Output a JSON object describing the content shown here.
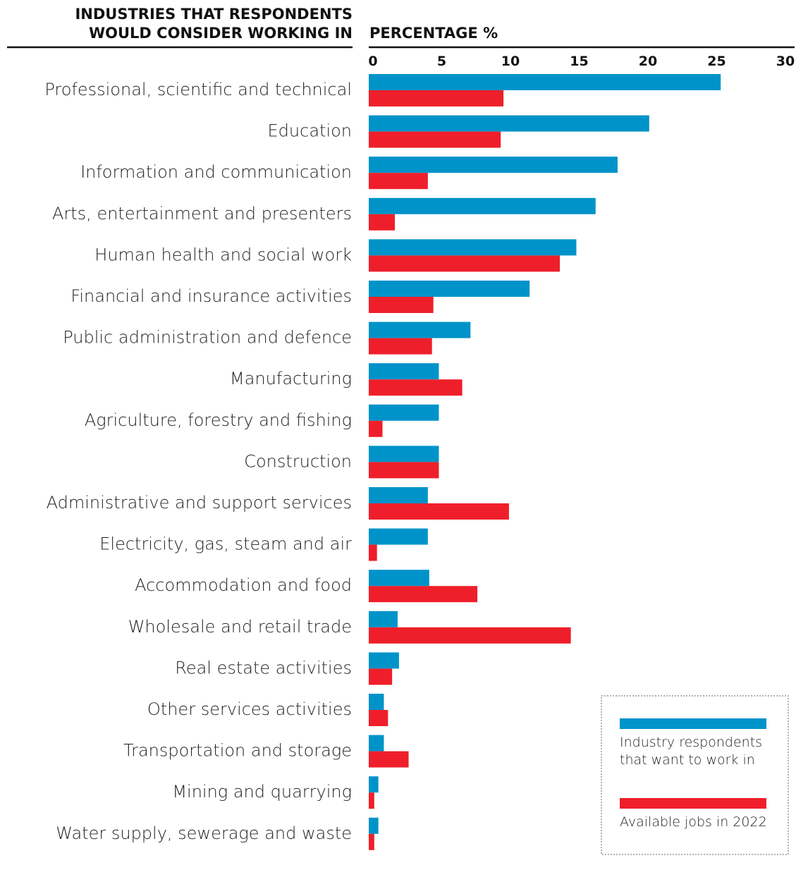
{
  "chart_data": {
    "type": "barh",
    "title": [
      "INDUSTRIES THAT RESPONDENTS",
      "WOULD CONSIDER WORKING IN"
    ],
    "x_label": "PERCENTAGE %",
    "categories": [
      "Professional, scientific and technical",
      "Education",
      "Information and communication",
      "Arts, entertainment and presenters",
      "Human health and social work",
      "Financial and insurance activities",
      "Public administration and defence",
      "Manufacturing",
      "Agriculture, forestry and fishing",
      "Construction",
      "Administrative and support services",
      "Electricity, gas, steam and air",
      "Accommodation and food",
      "Wholesale and retail trade",
      "Real estate activities",
      "Other services activities",
      "Transportation and storage",
      "Mining and quarrying",
      "Water supply, sewerage and waste"
    ],
    "series": [
      {
        "name": "Industry respondents that want to work in",
        "color": "#0093c9",
        "values": [
          25.6,
          20.4,
          18.1,
          16.5,
          15.1,
          11.7,
          7.4,
          5.1,
          5.1,
          5.1,
          4.3,
          4.3,
          4.4,
          2.1,
          2.2,
          1.1,
          1.1,
          0.7,
          0.7
        ]
      },
      {
        "name": "Available jobs in 2022",
        "color": "#ee1f2a",
        "values": [
          9.8,
          9.6,
          4.3,
          1.9,
          13.9,
          4.7,
          4.6,
          6.8,
          1.0,
          5.1,
          10.2,
          0.6,
          7.9,
          14.7,
          1.7,
          1.4,
          2.9,
          0.4,
          0.4
        ]
      }
    ],
    "xlim": [
      0,
      30
    ],
    "xticks": [
      0,
      5,
      10,
      15,
      20,
      25,
      30
    ],
    "legend": "lower right"
  }
}
